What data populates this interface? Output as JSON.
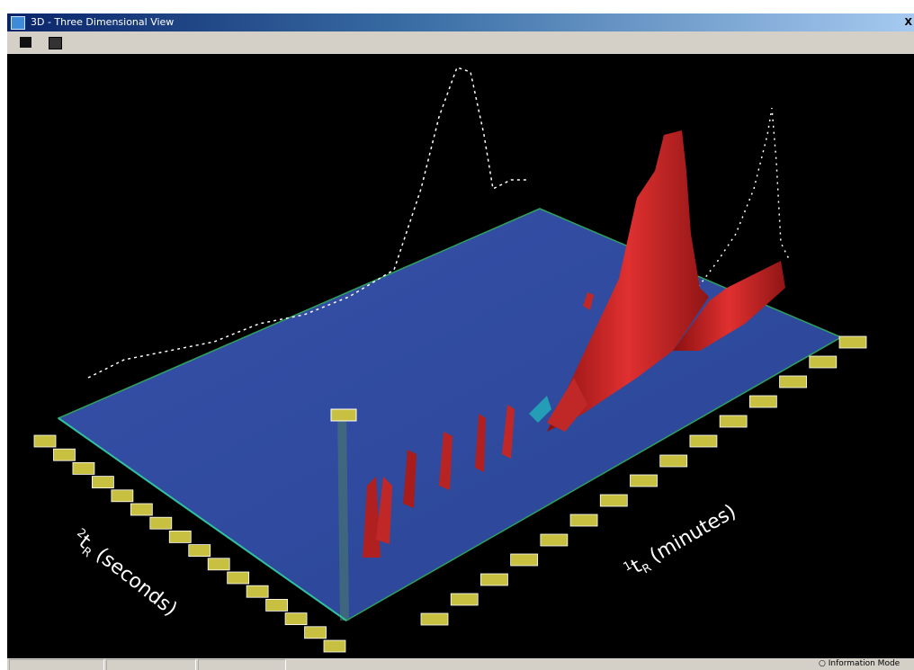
{
  "window": {
    "title": "3D - Three Dimensional View",
    "close": "X"
  },
  "plot": {
    "second_axis": {
      "superscript": "2",
      "symbol": "t",
      "subscript": "R",
      "unit": "(seconds)"
    },
    "first_axis": {
      "superscript": "1",
      "symbol": "t",
      "subscript": "R",
      "unit": "(minutes)"
    }
  },
  "status_bar": {
    "mode": "Information Mode"
  }
}
